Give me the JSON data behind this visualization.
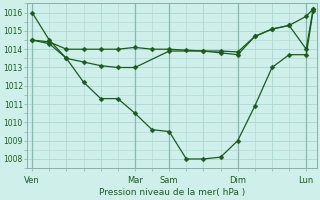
{
  "xlabel": "Pression niveau de la mer( hPa )",
  "bg_color": "#cff0ea",
  "line_color": "#1a5c1a",
  "grid_color": "#aad8d0",
  "ylim": [
    1007.5,
    1016.5
  ],
  "yticks": [
    1008,
    1009,
    1010,
    1011,
    1012,
    1013,
    1014,
    1015,
    1016
  ],
  "xtick_labels": [
    "Ven",
    "",
    "",
    "Mar",
    "Sam",
    "",
    "Dim",
    "",
    "Lun"
  ],
  "xtick_positions": [
    0,
    1,
    2,
    3,
    4,
    5,
    6,
    7,
    8
  ],
  "major_vlines": [
    0,
    3,
    4,
    6,
    8
  ],
  "xlim": [
    -0.15,
    8.3
  ],
  "series1_x": [
    0,
    0.5,
    1,
    1.5,
    2,
    2.5,
    3,
    3.5,
    4,
    4.5,
    5,
    5.5,
    6,
    6.5,
    7,
    7.5,
    8,
    8.2
  ],
  "series1_y": [
    1016.0,
    1014.5,
    1013.5,
    1012.2,
    1011.3,
    1011.3,
    1010.5,
    1009.6,
    1009.5,
    1008.0,
    1008.0,
    1008.1,
    1009.0,
    1010.9,
    1013.0,
    1013.7,
    1013.7,
    1016.1
  ],
  "series2_x": [
    0,
    0.5,
    1.0,
    1.5,
    2.0,
    2.5,
    3.0,
    3.5,
    4.0,
    4.5,
    5.0,
    5.5,
    6.0,
    6.5,
    7.0,
    7.5,
    8.0,
    8.2
  ],
  "series2_y": [
    1014.5,
    1014.4,
    1014.0,
    1014.0,
    1014.0,
    1014.0,
    1014.1,
    1014.0,
    1014.0,
    1013.95,
    1013.9,
    1013.9,
    1013.85,
    1014.7,
    1015.1,
    1015.3,
    1015.8,
    1016.2
  ],
  "series3_x": [
    0,
    0.5,
    1.0,
    1.5,
    2.0,
    2.5,
    3.0,
    4.0,
    5.0,
    5.5,
    6.0,
    6.5,
    7.0,
    7.5,
    8.0,
    8.2
  ],
  "series3_y": [
    1014.5,
    1014.3,
    1013.5,
    1013.3,
    1013.1,
    1013.0,
    1013.0,
    1013.9,
    1013.9,
    1013.8,
    1013.7,
    1014.7,
    1015.1,
    1015.3,
    1014.0,
    1016.2
  ]
}
